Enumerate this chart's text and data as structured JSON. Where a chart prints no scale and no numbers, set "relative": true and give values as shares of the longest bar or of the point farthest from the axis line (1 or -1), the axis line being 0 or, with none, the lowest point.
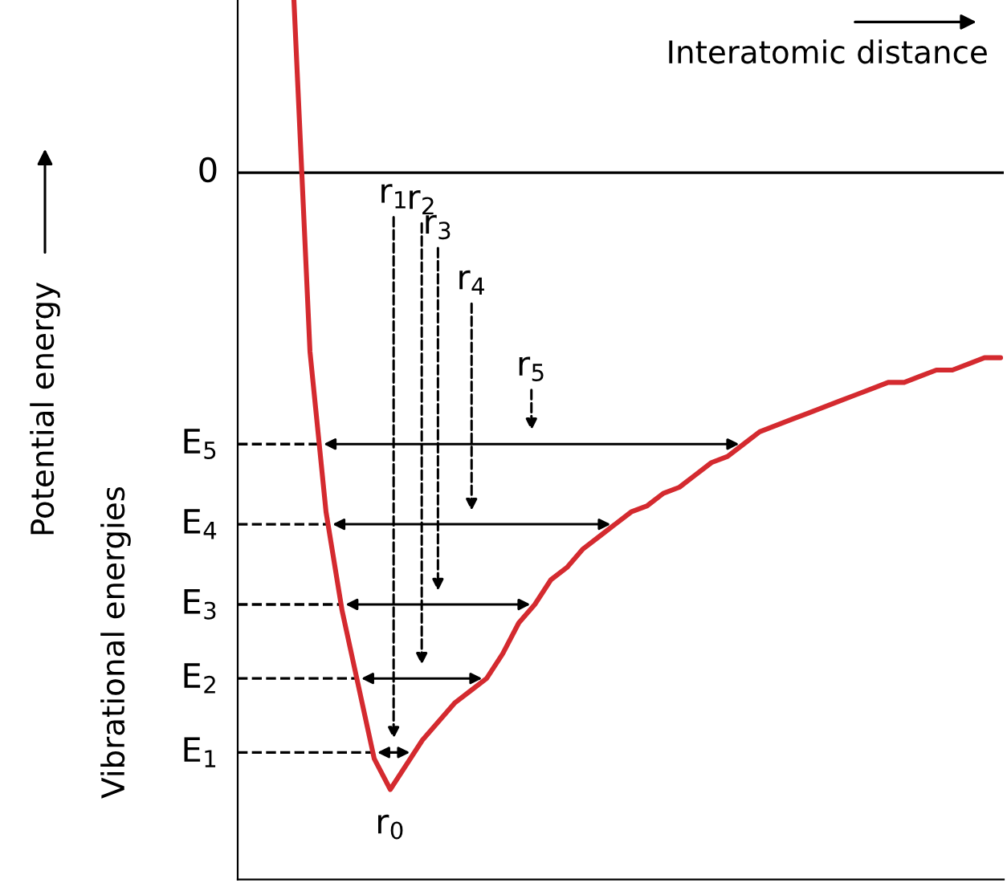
{
  "chart_data": {
    "type": "line",
    "relative": true,
    "xlabel": "Interatomic distance",
    "annotations": [
      "Potential energy",
      "Vibrational energies",
      "r$_{0}$",
      "r$_{1}$",
      "r$_{2}$",
      "r$_{3}$",
      "r$_{4}$",
      "r$_{5}$"
    ],
    "categories": [
      null,
      null,
      null,
      null,
      null,
      null,
      null,
      null,
      null,
      null,
      null,
      null,
      null,
      null,
      null,
      null,
      null,
      null,
      null,
      null,
      null,
      null,
      null,
      null,
      null,
      null,
      null,
      null,
      null,
      null,
      null,
      null,
      null,
      null,
      null,
      null,
      null,
      null,
      null,
      null,
      null,
      null,
      null,
      null,
      null
    ],
    "series": [
      {
        "color": "#d42a2f",
        "values": [
          0.28,
          -0.29,
          -0.55,
          -0.71,
          -0.83,
          -0.95,
          -1.0,
          -0.96,
          -0.92,
          -0.89,
          -0.86,
          -0.84,
          -0.82,
          -0.78,
          -0.73,
          -0.7,
          -0.66,
          -0.64,
          -0.61,
          -0.59,
          -0.57,
          -0.55,
          -0.54,
          -0.52,
          -0.51,
          -0.49,
          -0.47,
          -0.46,
          -0.44,
          -0.42,
          -0.41,
          -0.4,
          -0.39,
          -0.38,
          -0.37,
          -0.36,
          -0.35,
          -0.34,
          -0.34,
          -0.33,
          -0.32,
          -0.32,
          -0.31,
          -0.3,
          -0.3
        ]
      }
    ],
    "ref_lines": [
      {
        "axis": "y",
        "value": 0,
        "label": "0",
        "color": "#000000",
        "line_style": "solid"
      },
      {
        "axis": "y",
        "value": -0.94,
        "label": "E$_{1}$",
        "color": "#000000",
        "line_style": "dashed"
      },
      {
        "axis": "y",
        "value": -0.82,
        "label": "E$_{2}$",
        "color": "#000000",
        "line_style": "dashed"
      },
      {
        "axis": "y",
        "value": -0.7,
        "label": "E$_{3}$",
        "color": "#000000",
        "line_style": "dashed"
      },
      {
        "axis": "y",
        "value": -0.57,
        "label": "E$_{4}$",
        "color": "#000000",
        "line_style": "dashed"
      },
      {
        "axis": "y",
        "value": -0.44,
        "label": "E$_{5}$",
        "color": "#000000",
        "line_style": "dashed"
      }
    ],
    "legend": false
  }
}
